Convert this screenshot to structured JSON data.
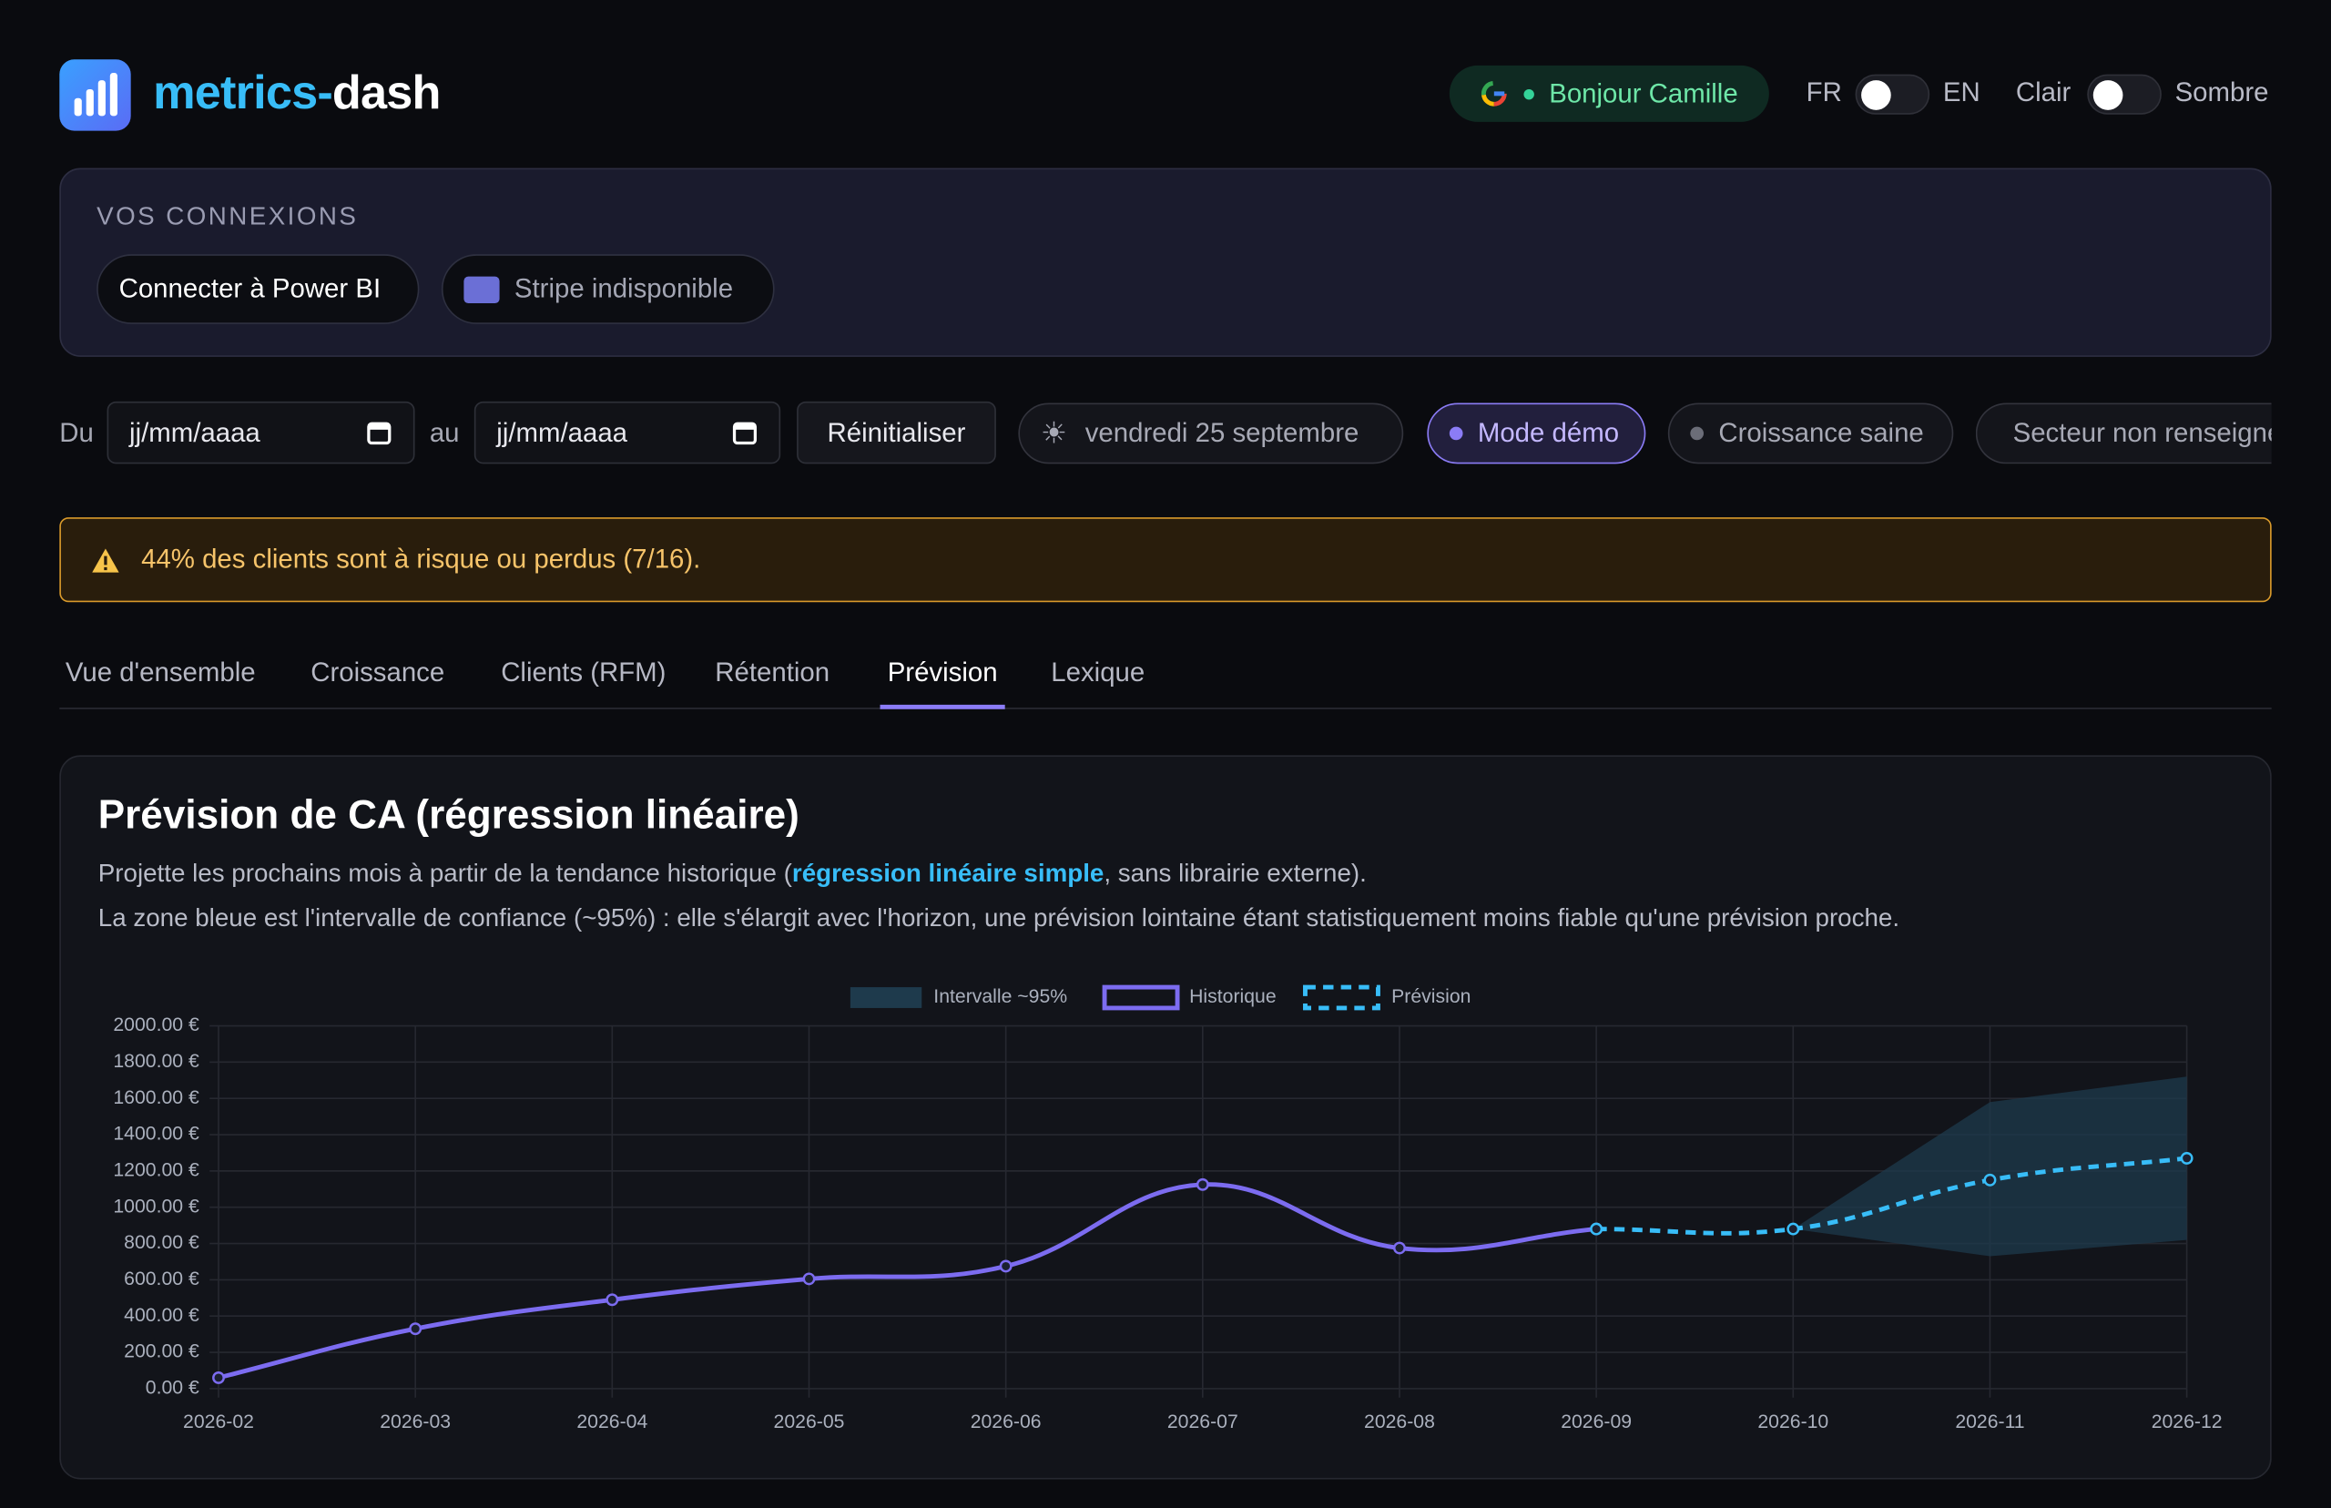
{
  "header": {
    "brand_a": "metrics-",
    "brand_b": "dash",
    "greeting": "Bonjour Camille",
    "lang_left": "FR",
    "lang_right": "EN",
    "theme_left": "Clair",
    "theme_right": "Sombre"
  },
  "connections": {
    "title": "VOS CONNEXIONS",
    "buttons": [
      "Connecter à Power BI",
      "Stripe indisponible"
    ]
  },
  "filters": {
    "from": "Du",
    "placeholder_from": "jj/mm/aaaa",
    "to": "au",
    "placeholder_to": "jj/mm/aaaa",
    "reset": "Réinitialiser",
    "chips": [
      "vendredi 25 septembre",
      "Mode démo",
      "Croissance saine",
      "Secteur non renseigné"
    ]
  },
  "alert": "44% des clients sont à risque ou perdus (7/16).",
  "tabs": [
    "Vue d'ensemble",
    "Croissance",
    "Clients (RFM)",
    "Rétention",
    "Prévision",
    "Lexique"
  ],
  "active_tab": 4,
  "card": {
    "title": "Prévision de CA (régression linéaire)",
    "desc1_a": "Projette les prochains mois à partir de la tendance historique (",
    "desc1_link": "régression linéaire simple",
    "desc1_b": ", sans librairie externe).",
    "desc2": "La zone bleue est l'intervalle de confiance (~95%) : elle s'élargit avec l'horizon, une prévision lointaine étant statistiquement moins fiable qu'une prévision proche."
  },
  "chart_data": {
    "type": "line",
    "categories": [
      "2026-02",
      "2026-03",
      "2026-04",
      "2026-05",
      "2026-06",
      "2026-07",
      "2026-08",
      "2026-09",
      "2026-10",
      "2026-11",
      "2026-12"
    ],
    "band": {
      "name": "Intervalle ~95%",
      "color": "#1e3a4c",
      "lower": [
        null,
        null,
        null,
        null,
        null,
        null,
        null,
        null,
        880,
        730,
        820
      ],
      "upper": [
        null,
        null,
        null,
        null,
        null,
        null,
        null,
        null,
        880,
        1580,
        1720
      ]
    },
    "series": [
      {
        "name": "Historique",
        "color": "#7c6cf0",
        "dashed": false,
        "values": [
          60,
          330,
          490,
          605,
          675,
          1125,
          775,
          880,
          null,
          null,
          null
        ]
      },
      {
        "name": "Prévision",
        "color": "#38bdf8",
        "dashed": true,
        "values": [
          null,
          null,
          null,
          null,
          null,
          null,
          null,
          880,
          880,
          1150,
          1270
        ]
      }
    ],
    "ylim": [
      0,
      2000
    ],
    "yticks": [
      {
        "value": 0,
        "label": "0.00 €"
      },
      {
        "value": 200,
        "label": "200.00 €"
      },
      {
        "value": 400,
        "label": "400.00 €"
      },
      {
        "value": 600,
        "label": "600.00 €"
      },
      {
        "value": 800,
        "label": "800.00 €"
      },
      {
        "value": 1000,
        "label": "1000.00 €"
      },
      {
        "value": 1200,
        "label": "1200.00 €"
      },
      {
        "value": 1400,
        "label": "1400.00 €"
      },
      {
        "value": 1600,
        "label": "1600.00 €"
      },
      {
        "value": 1800,
        "label": "1800.00 €"
      },
      {
        "value": 2000,
        "label": "2000.00 €"
      }
    ],
    "grid": true
  }
}
